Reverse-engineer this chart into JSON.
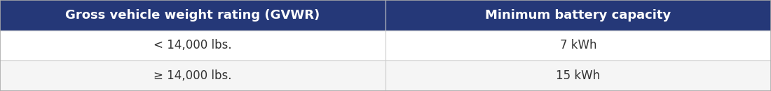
{
  "header_bg_color": "#253878",
  "header_text_color": "#ffffff",
  "row_bg_colors": [
    "#ffffff",
    "#f5f5f5"
  ],
  "row_text_color": "#333333",
  "border_color": "#cccccc",
  "col1_header": "Gross vehicle weight rating (GVWR)",
  "col2_header": "Minimum battery capacity",
  "rows": [
    [
      "< 14,000 lbs.",
      "7 kWh"
    ],
    [
      "≥ 14,000 lbs.",
      "15 kWh"
    ]
  ],
  "col_split": 0.5,
  "header_fontsize": 13,
  "row_fontsize": 12,
  "fig_width": 11.0,
  "fig_height": 1.31,
  "outer_border_color": "#aaaaaa"
}
